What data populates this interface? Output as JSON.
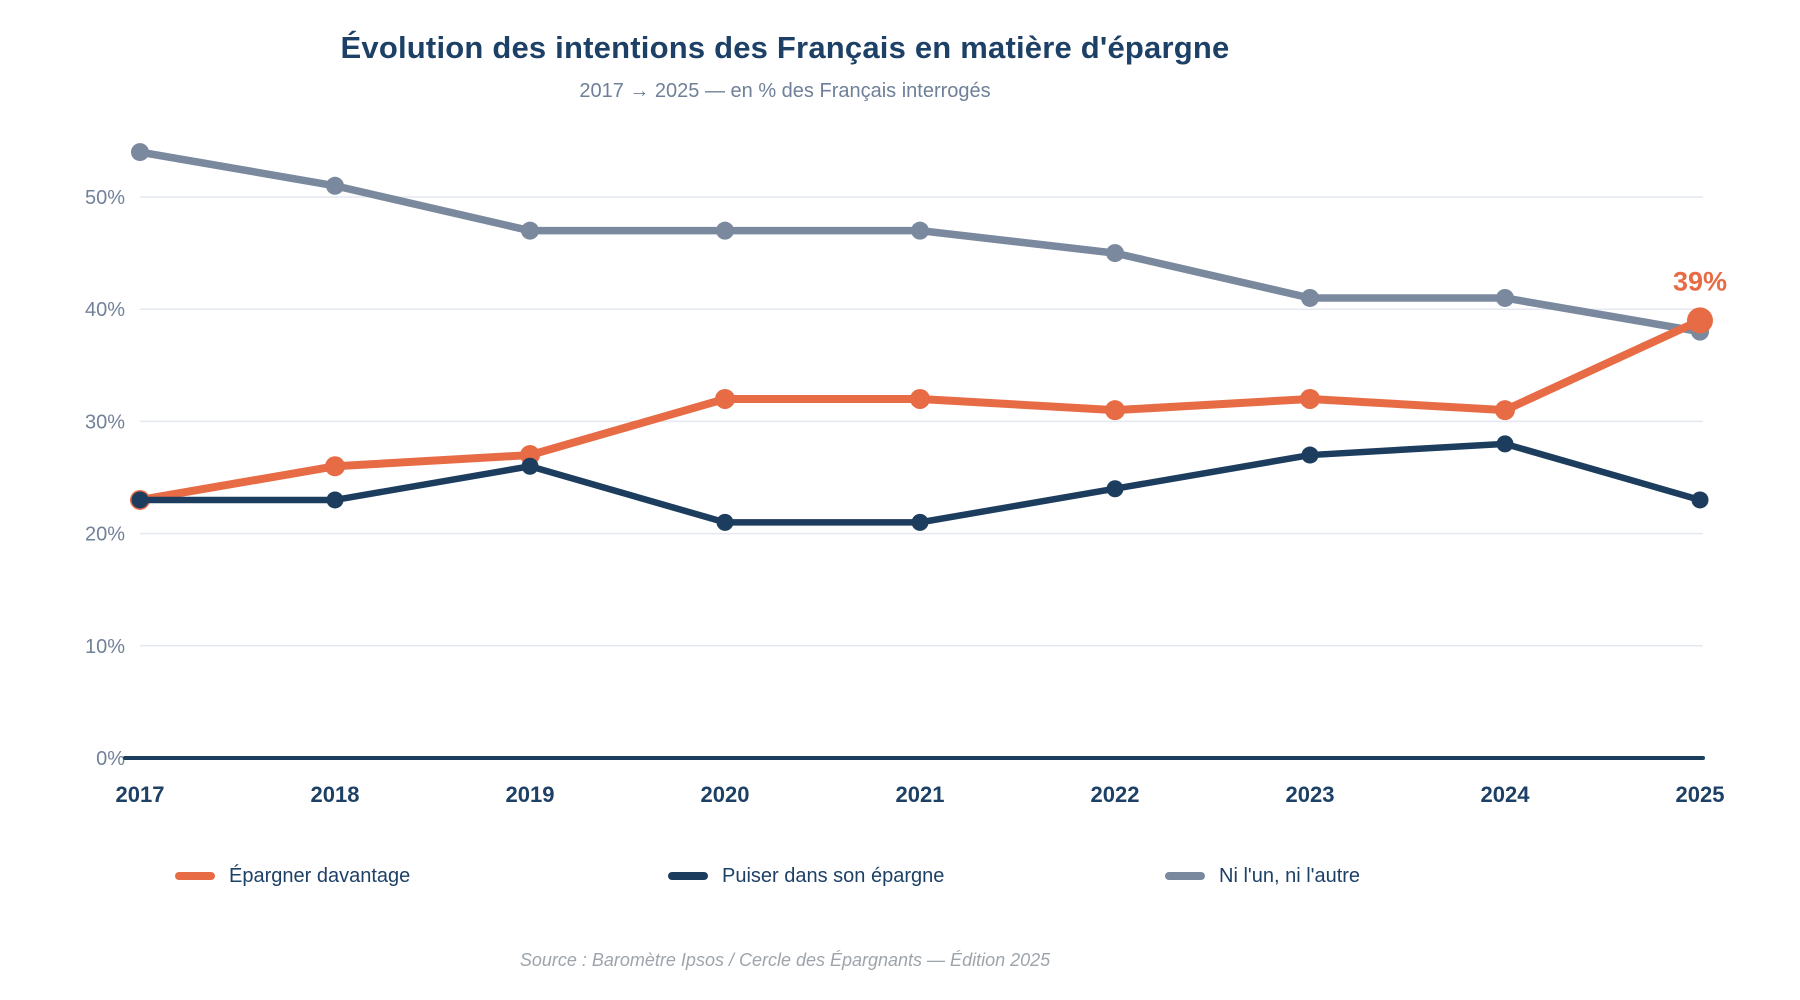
{
  "header": {
    "title": "Évolution des intentions des Français en matière d'épargne",
    "subtitle": "2017 → 2025 — en % des Français interrogés"
  },
  "chart_data": {
    "type": "line",
    "title": "Évolution des intentions des Français en matière d'épargne",
    "subtitle": "2017 → 2025 — en % des Français interrogés",
    "categories": [
      "2017",
      "2018",
      "2019",
      "2020",
      "2021",
      "2022",
      "2023",
      "2024",
      "2025"
    ],
    "series": [
      {
        "name": "Épargner davantage",
        "color": "#E76B45",
        "values": [
          23,
          26,
          27,
          32,
          32,
          31,
          32,
          31,
          39
        ]
      },
      {
        "name": "Puiser dans son épargne",
        "color": "#1C3D5E",
        "values": [
          23,
          23,
          26,
          21,
          21,
          24,
          27,
          28,
          23
        ]
      },
      {
        "name": "Ni l'un, ni l'autre",
        "color": "#7A899E",
        "values": [
          54,
          51,
          47,
          47,
          47,
          45,
          41,
          41,
          38
        ]
      }
    ],
    "y_ticks": [
      {
        "label": "0%",
        "value": 0
      },
      {
        "label": "10%",
        "value": 10
      },
      {
        "label": "20%",
        "value": 20
      },
      {
        "label": "30%",
        "value": 30
      },
      {
        "label": "40%",
        "value": 40
      },
      {
        "label": "50%",
        "value": 50
      }
    ],
    "ylim": [
      0,
      56
    ],
    "grid": true,
    "legend_position": "bottom",
    "annotation": {
      "text": "39%",
      "series": "Épargner davantage",
      "category": "2025",
      "value": 39,
      "color": "#E76B45"
    },
    "axis_color": "#1C3D5E",
    "grid_color": "#E4E9F1",
    "tick_label_color": "#72819A",
    "x_label_color": "#1D4066"
  },
  "legend": {
    "items": [
      {
        "label": "Épargner davantage",
        "color": "#E76B45"
      },
      {
        "label": "Puiser dans son épargne",
        "color": "#1C3D5E"
      },
      {
        "label": "Ni l'un, ni l'autre",
        "color": "#7A899E"
      }
    ]
  },
  "footer": {
    "source": "Source : Baromètre Ipsos / Cercle des Épargnants — Édition 2025"
  }
}
